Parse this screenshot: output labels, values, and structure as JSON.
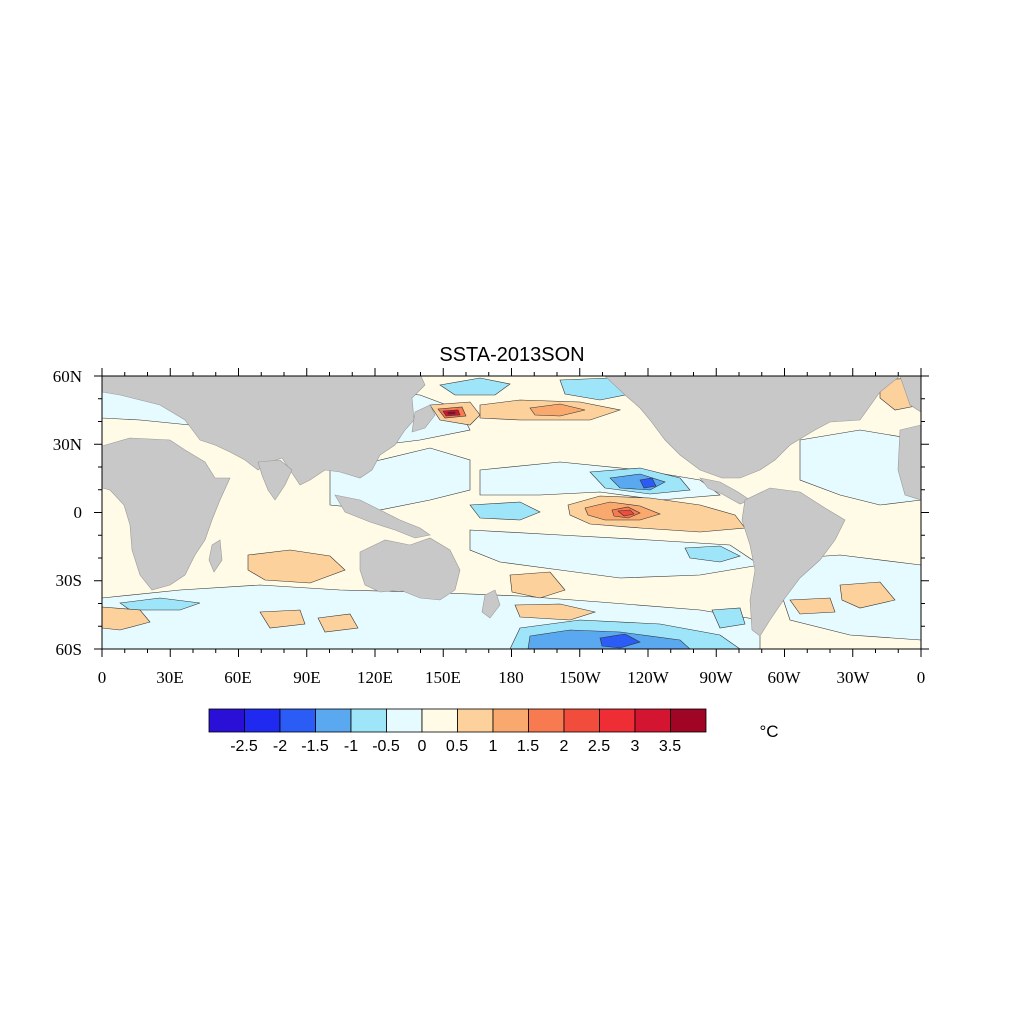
{
  "title": "SSTA-2013SON",
  "units": "°C",
  "x_axis": {
    "ticks": [
      "0",
      "30E",
      "60E",
      "90E",
      "120E",
      "150E",
      "180",
      "150W",
      "120W",
      "90W",
      "60W",
      "30W",
      "0"
    ]
  },
  "y_axis": {
    "ticks": [
      "60N",
      "30N",
      "0",
      "30S",
      "60S"
    ]
  },
  "colorbar": {
    "labels": [
      "-2.5",
      "-2",
      "-1.5",
      "-1",
      "-0.5",
      "0",
      "0.5",
      "1",
      "1.5",
      "2",
      "2.5",
      "3",
      "3.5"
    ],
    "colors": [
      "#2a10d6",
      "#1f29f0",
      "#2b5cf5",
      "#5aa8f0",
      "#9ee5fa",
      "#e6fbff",
      "#fffbe6",
      "#fdd19b",
      "#f9a86e",
      "#f77a50",
      "#f24d3c",
      "#ee2d35",
      "#d41531",
      "#a00525"
    ]
  },
  "colors": {
    "land": "#c8c8c8",
    "ocean_neutral_warm": "#fffbe6",
    "ocean_neutral_cool": "#e6fbff"
  }
}
